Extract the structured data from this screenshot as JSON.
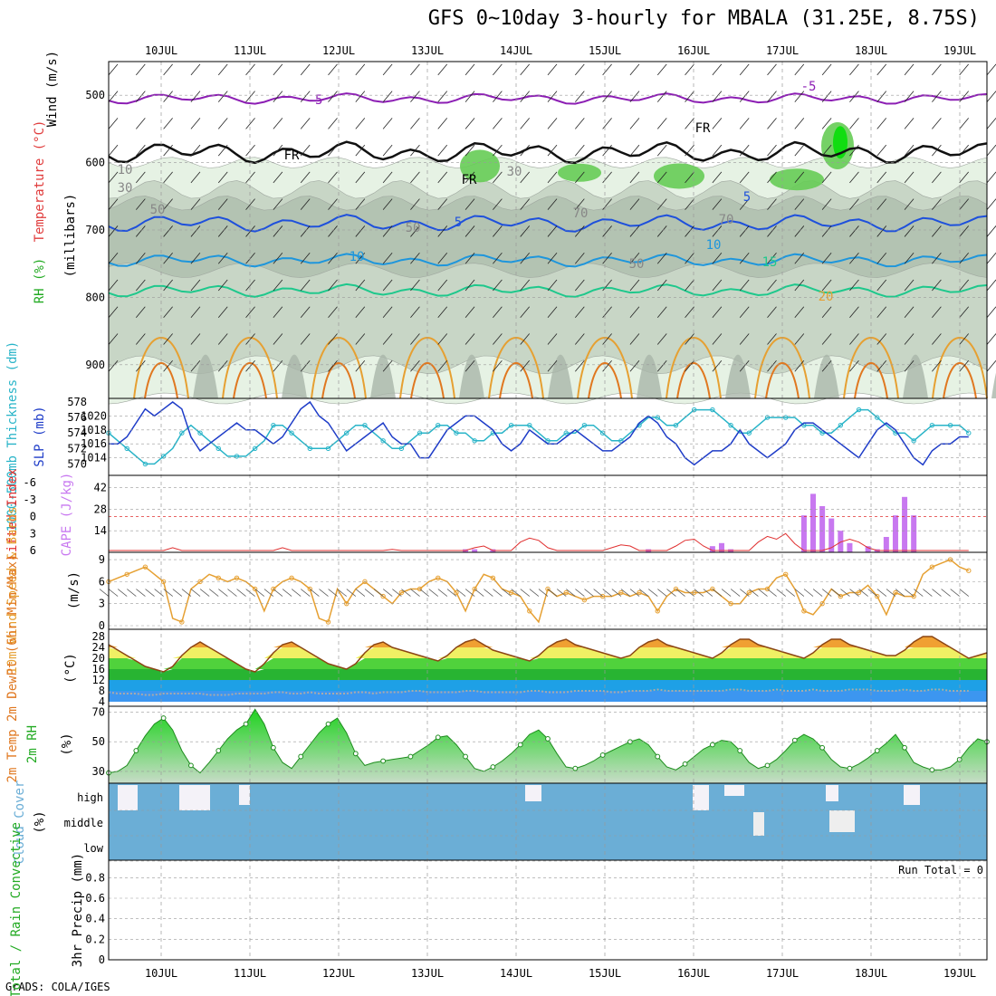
{
  "title": "GFS 0~10day 3-hourly for MBALA (31.25E, 8.75S)",
  "credit": "GrADS: COLA/IGES",
  "run_total": "Run Total = 0",
  "dates": [
    "10JUL",
    "11JUL",
    "12JUL",
    "13JUL",
    "14JUL",
    "15JUL",
    "16JUL",
    "17JUL",
    "18JUL",
    "19JUL"
  ],
  "colors": {
    "wind_barb": "#222222",
    "temp_line": "#1e50dc",
    "rh_fill": "#32c832",
    "cape": "#c878f0",
    "lifted": "#e03030",
    "wind_speed": "#e6a032",
    "slp": "#1e3cc8",
    "thick": "#28b4c8",
    "cloud": "#6baed6"
  },
  "panels": {
    "upper": {
      "ylabel_wind": "Wind (m/s)",
      "ylabel_temp": "Temperature (°C)",
      "ylabel_rh": "RH (%)",
      "ylabel_p": "(millibars)",
      "pressure_ticks": [
        "500",
        "600",
        "700",
        "800",
        "900"
      ],
      "pressure_values": [
        500,
        600,
        700,
        800,
        900
      ],
      "p_range": [
        450,
        950
      ],
      "labels": [
        "-5",
        "-5",
        "FR",
        "FR",
        "FR",
        "5",
        "5",
        "10",
        "10",
        "15",
        "20",
        "10",
        "30",
        "30",
        "50",
        "50",
        "50",
        "70",
        "70"
      ]
    },
    "slp": {
      "ylabel_thick": "1000-500mb Thickness (dm)",
      "ylabel_slp": "SLP (mb)",
      "left_ticks": [
        "578",
        "576",
        "574",
        "572",
        "570"
      ],
      "right_ticks": [
        "1020",
        "1018",
        "1016",
        "1014"
      ]
    },
    "cape": {
      "ylabel_li": "Lifted Index",
      "ylabel_cape": "CAPE (J/kg)",
      "left_ticks": [
        "-6",
        "-3",
        "0",
        "3",
        "6"
      ],
      "right_ticks": [
        "42",
        "28",
        "14"
      ]
    },
    "wind": {
      "ylabel": "10m Wind Speed & Barbs",
      "ylabel_unit": "(m/s)",
      "ticks": [
        "9",
        "6",
        "3",
        "0"
      ]
    },
    "temp": {
      "ylabel": "2m Temp 2m DewPt (6hr Min/Max)",
      "ylabel_unit": "(°C)",
      "ticks": [
        "28",
        "24",
        "20",
        "16",
        "12",
        "8",
        "4"
      ]
    },
    "rh": {
      "ylabel": "2m RH",
      "ylabel_unit": "(%)",
      "ticks": [
        "70",
        "50",
        "30"
      ]
    },
    "cloud": {
      "ylabel": "Cloud Cover",
      "ylabel_unit": "(%)",
      "levels": [
        "high",
        "middle",
        "low"
      ]
    },
    "precip": {
      "ylabel": "Total / Rain Convective",
      "ylabel_unit": "3hr Precip (mm)",
      "ticks": [
        "0.8",
        "0.6",
        "0.4",
        "0.2",
        "0"
      ]
    }
  },
  "chart_data": {
    "type": "line",
    "x_start": "09JUL 12Z",
    "step_hours": 3,
    "slp_mb": [
      1016,
      1016,
      1017,
      1019,
      1021,
      1020,
      1021,
      1022,
      1021,
      1017,
      1015,
      1016,
      1017,
      1018,
      1019,
      1018,
      1018,
      1017,
      1016,
      1017,
      1019,
      1021,
      1022,
      1020,
      1019,
      1017,
      1015,
      1016,
      1017,
      1018,
      1019,
      1017,
      1016,
      1016,
      1014,
      1014,
      1016,
      1018,
      1019,
      1020,
      1020,
      1019,
      1018,
      1016,
      1015,
      1016,
      1018,
      1017,
      1016,
      1016,
      1017,
      1018,
      1017,
      1016,
      1015,
      1015,
      1016,
      1017,
      1019,
      1020,
      1019,
      1017,
      1016,
      1014,
      1013,
      1014,
      1015,
      1015,
      1016,
      1018,
      1016,
      1015,
      1014,
      1015,
      1016,
      1018,
      1019,
      1019,
      1018,
      1017,
      1016,
      1015,
      1014,
      1016,
      1018,
      1019,
      1018,
      1016,
      1014,
      1013,
      1015,
      1016,
      1016,
      1017,
      1017
    ],
    "thickness_dm": [
      574,
      573,
      572,
      571,
      570,
      570,
      571,
      572,
      574,
      575,
      574,
      573,
      572,
      571,
      571,
      571,
      572,
      573,
      575,
      575,
      574,
      573,
      572,
      572,
      572,
      573,
      574,
      575,
      575,
      574,
      573,
      572,
      572,
      573,
      574,
      574,
      575,
      575,
      574,
      574,
      573,
      573,
      574,
      574,
      575,
      575,
      575,
      574,
      573,
      573,
      574,
      574,
      575,
      575,
      574,
      573,
      573,
      574,
      575,
      576,
      576,
      575,
      575,
      576,
      577,
      577,
      577,
      576,
      575,
      574,
      574,
      575,
      576,
      576,
      576,
      576,
      575,
      575,
      574,
      574,
      575,
      576,
      577,
      577,
      576,
      575,
      574,
      574,
      573,
      574,
      575,
      575,
      575,
      575,
      574
    ],
    "cape_jkg": [
      0,
      0,
      0,
      0,
      0,
      0,
      0,
      0,
      0,
      0,
      0,
      0,
      0,
      0,
      0,
      0,
      0,
      0,
      0,
      0,
      0,
      0,
      0,
      0,
      0,
      0,
      0,
      0,
      0,
      0,
      0,
      0,
      0,
      0,
      0,
      0,
      0,
      0,
      0,
      2,
      2,
      0,
      2,
      0,
      0,
      0,
      0,
      0,
      0,
      0,
      0,
      0,
      0,
      0,
      0,
      0,
      0,
      0,
      0,
      2,
      0,
      0,
      0,
      0,
      0,
      0,
      4,
      6,
      2,
      0,
      0,
      0,
      0,
      0,
      0,
      0,
      24,
      38,
      30,
      22,
      14,
      6,
      0,
      4,
      2,
      10,
      24,
      36,
      24,
      0,
      0,
      0,
      0,
      0,
      0
    ],
    "lifted_index": [
      6,
      6,
      6,
      6,
      6,
      6,
      6,
      5.5,
      6,
      6,
      6,
      6,
      6,
      6,
      6,
      6,
      6,
      6,
      6,
      5.5,
      6,
      6,
      6,
      6,
      6,
      6,
      6,
      6,
      6,
      6,
      6,
      5.8,
      6,
      6,
      6,
      6,
      6,
      6,
      6,
      6,
      5.5,
      5.2,
      6,
      6,
      6,
      4.5,
      3.8,
      4.2,
      5.5,
      6,
      6,
      6,
      6,
      6,
      6,
      5.5,
      5,
      5.2,
      6,
      6,
      6,
      6,
      5.2,
      4.2,
      4,
      5.2,
      6,
      6,
      6,
      6,
      6,
      4.5,
      3.5,
      4,
      3,
      4.8,
      6,
      6,
      6,
      5.5,
      4.5,
      4,
      4.5,
      5.5,
      6,
      6,
      6,
      6,
      6,
      6,
      6,
      6,
      6,
      6,
      6
    ],
    "wind_speed_ms": [
      6,
      6.5,
      7,
      7.5,
      8,
      7,
      6,
      1,
      0.5,
      5,
      6,
      7,
      6.5,
      6,
      6.5,
      6,
      5,
      2,
      5,
      6,
      6.5,
      6,
      5,
      1,
      0.5,
      5,
      3,
      5,
      6,
      5,
      4,
      3,
      4.5,
      5,
      5,
      6,
      6.5,
      6,
      4.5,
      2,
      5,
      7,
      6.5,
      5,
      4.5,
      4,
      2,
      0.5,
      5,
      4,
      4.5,
      4,
      3.5,
      4,
      4,
      4,
      4.5,
      4,
      4.5,
      4,
      2,
      4,
      5,
      4.5,
      4.5,
      4.5,
      5,
      4,
      3,
      3,
      4.5,
      5,
      5,
      6.5,
      7,
      5,
      2,
      1.5,
      3,
      5,
      4,
      4.5,
      4.5,
      5.5,
      4,
      1.5,
      4.5,
      4,
      4,
      7,
      8,
      8.5,
      9,
      8,
      7.5
    ],
    "temp_c": [
      25,
      23,
      21,
      19,
      17,
      16,
      15,
      17,
      21,
      24,
      26,
      24,
      22,
      20,
      18,
      16,
      15,
      18,
      22,
      25,
      26,
      24,
      22,
      20,
      18,
      17,
      16,
      18,
      22,
      25,
      26,
      24,
      23,
      22,
      21,
      20,
      19,
      21,
      24,
      26,
      27,
      25,
      23,
      22,
      21,
      20,
      19,
      21,
      24,
      26,
      27,
      25,
      24,
      23,
      22,
      21,
      20,
      21,
      24,
      26,
      27,
      25,
      24,
      23,
      22,
      21,
      20,
      22,
      25,
      27,
      27,
      25,
      24,
      23,
      22,
      21,
      20,
      22,
      25,
      27,
      27,
      25,
      24,
      23,
      22,
      21,
      21,
      23,
      26,
      28,
      28,
      26,
      24,
      22,
      20,
      21,
      22
    ],
    "dewpoint_c": [
      7.5,
      7,
      7,
      7,
      6.5,
      6.5,
      7,
      7,
      7,
      7,
      7,
      6.5,
      6.5,
      6.5,
      7,
      7,
      7,
      7,
      7.5,
      7.5,
      7,
      7,
      7.5,
      7,
      7,
      7,
      7,
      7.5,
      7.5,
      7,
      7.5,
      7.5,
      7.5,
      8,
      8,
      7.5,
      7.5,
      7.5,
      7.5,
      8,
      8,
      7.5,
      7.5,
      7.5,
      7.5,
      7.5,
      8,
      8,
      7.5,
      7.5,
      7.5,
      8,
      8,
      8,
      8,
      7.5,
      7.5,
      8,
      8,
      8,
      8.5,
      8,
      8,
      8,
      8,
      8,
      8,
      8,
      8.5,
      8.5,
      8,
      8,
      8,
      8.5,
      8,
      8,
      8,
      8.5,
      8,
      8,
      8,
      8.5,
      8.5,
      8.5,
      8,
      8,
      8,
      8.5,
      8,
      8,
      8.5,
      8.5,
      8,
      8,
      8
    ],
    "rh_pct": [
      29,
      30,
      34,
      44,
      54,
      62,
      66,
      58,
      44,
      34,
      29,
      36,
      44,
      52,
      58,
      62,
      72,
      62,
      46,
      36,
      32,
      40,
      48,
      56,
      62,
      66,
      56,
      42,
      34,
      36,
      37,
      38,
      39,
      40,
      44,
      48,
      53,
      54,
      48,
      40,
      32,
      30,
      33,
      37,
      42,
      48,
      55,
      58,
      52,
      42,
      33,
      32,
      34,
      37,
      41,
      44,
      47,
      50,
      52,
      48,
      40,
      33,
      31,
      35,
      40,
      45,
      48,
      51,
      50,
      44,
      36,
      32,
      34,
      38,
      44,
      51,
      55,
      52,
      46,
      38,
      33,
      32,
      35,
      39,
      44,
      49,
      55,
      46,
      36,
      33,
      31,
      31,
      33,
      38,
      46,
      52,
      50
    ]
  }
}
